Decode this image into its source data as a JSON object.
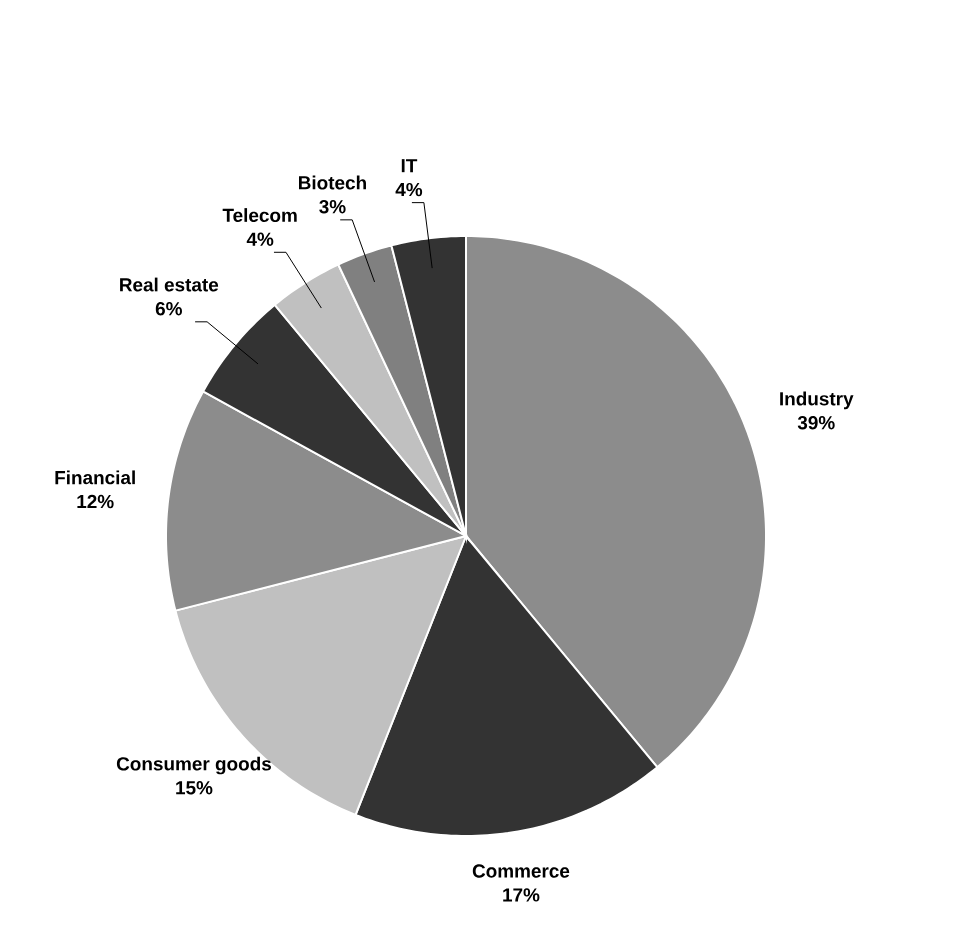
{
  "chart_data": {
    "type": "pie",
    "categories": [
      "Industry",
      "Commerce",
      "Consumer goods",
      "Financial",
      "Real estate",
      "Telecom",
      "Biotech",
      "IT"
    ],
    "values": [
      39,
      17,
      15,
      12,
      6,
      4,
      3,
      4
    ],
    "value_labels": [
      "39%",
      "17%",
      "15%",
      "12%",
      "6%",
      "4%",
      "3%",
      "4%"
    ],
    "colors": [
      "#8c8c8c",
      "#333333",
      "#c0c0c0",
      "#8c8c8c",
      "#333333",
      "#c0c0c0",
      "#808080",
      "#333333"
    ]
  }
}
